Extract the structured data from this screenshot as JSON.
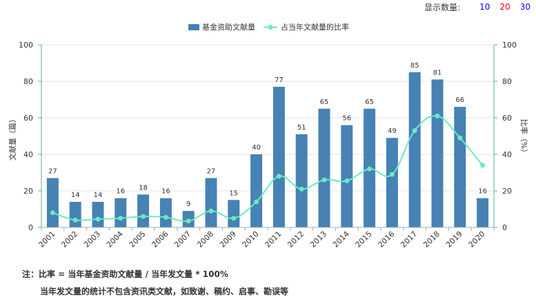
{
  "topbar": {
    "label": "显示数量:",
    "options": [
      {
        "text": "10",
        "color": "#0000ff"
      },
      {
        "text": "20",
        "color": "#ff0000"
      },
      {
        "text": "30",
        "color": "#0000ff"
      }
    ]
  },
  "notes": {
    "line1": "注：比率 = 当年基金资助文献量 / 当年发文量 * 100%",
    "line2": "当年发文量的统计不包含资讯类文献，如致谢、稿约、启事、勘误等"
  },
  "colors": {
    "bar": "#4682b4",
    "line": "#6ee8c0",
    "axis_left": "#4ab0a0",
    "grid": "#e3e3e3"
  },
  "chart_data": {
    "type": "bar",
    "categories": [
      "2001",
      "2002",
      "2003",
      "2004",
      "2005",
      "2006",
      "2007",
      "2008",
      "2009",
      "2010",
      "2011",
      "2012",
      "2013",
      "2014",
      "2015",
      "2016",
      "2017",
      "2018",
      "2019",
      "2020"
    ],
    "series": [
      {
        "name": "基金资助文献量",
        "type": "bar",
        "axis": "left",
        "values": [
          27,
          14,
          14,
          16,
          18,
          16,
          9,
          27,
          15,
          40,
          77,
          51,
          65,
          56,
          65,
          49,
          85,
          81,
          66,
          16
        ]
      },
      {
        "name": "占当年文献量的比率",
        "type": "line",
        "axis": "right",
        "values": [
          8,
          4,
          4.5,
          5,
          6,
          5.5,
          3.5,
          9,
          5,
          14,
          28,
          21,
          26,
          25.5,
          32,
          29,
          53,
          61,
          49,
          34
        ]
      }
    ],
    "ylabel_left": "文献量（篇）",
    "ylabel_right": "比率（%）",
    "ylim_left": [
      0,
      100
    ],
    "ylim_right": [
      0,
      100
    ],
    "yticks": [
      "0",
      "20",
      "40",
      "60",
      "80",
      "100"
    ],
    "grid": true,
    "legend_position": "top-center"
  }
}
